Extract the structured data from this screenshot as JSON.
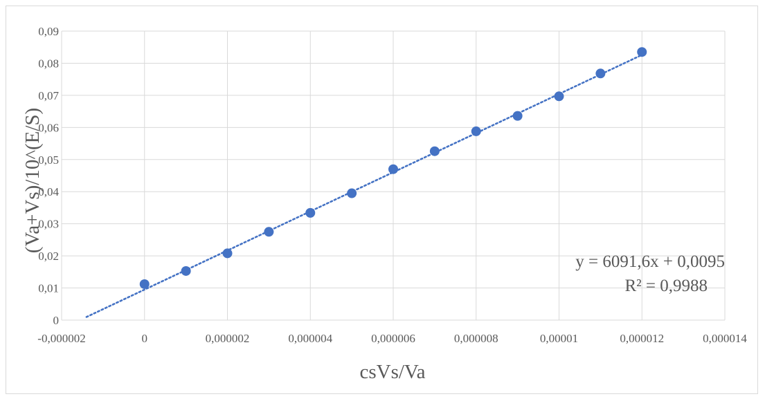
{
  "chart_data": {
    "type": "scatter",
    "xlabel": "csVs/Va",
    "ylabel": "(Va+Vs)/10^(E/S)",
    "xlim": [
      -2e-06,
      1.4e-05
    ],
    "ylim": [
      0,
      0.09
    ],
    "x_tick_values": [
      -2e-06,
      0,
      2e-06,
      4e-06,
      6e-06,
      8e-06,
      1e-05,
      1.2e-05,
      1.4e-05
    ],
    "x_tick_labels": [
      "-0,000002",
      "0",
      "0,000002",
      "0,000004",
      "0,000006",
      "0,000008",
      "0,00001",
      "0,000012",
      "0,000014"
    ],
    "y_tick_values": [
      0,
      0.01,
      0.02,
      0.03,
      0.04,
      0.05,
      0.06,
      0.07,
      0.08,
      0.09
    ],
    "y_tick_labels": [
      "0",
      "0,01",
      "0,02",
      "0,03",
      "0,04",
      "0,05",
      "0,06",
      "0,07",
      "0,08",
      "0,09"
    ],
    "grid": true,
    "point_color": "#4472c4",
    "series": [
      {
        "x": [
          0,
          1e-06,
          2e-06,
          3e-06,
          4e-06,
          5e-06,
          6e-06,
          7e-06,
          8e-06,
          9e-06,
          1e-05,
          1.1e-05,
          1.2e-05
        ],
        "y": [
          0.0112,
          0.0153,
          0.0208,
          0.0275,
          0.0334,
          0.0395,
          0.047,
          0.0526,
          0.0588,
          0.0636,
          0.0697,
          0.0768,
          0.0835
        ]
      }
    ],
    "trendline": {
      "type": "linear",
      "style": "dotted",
      "slope": 6091.6,
      "intercept": 0.0095,
      "x_range": [
        -1.4e-06,
        1.2e-05
      ],
      "equation_text": "y = 6091,6x + 0,0095",
      "r2_text": "R² = 0,9988"
    }
  }
}
